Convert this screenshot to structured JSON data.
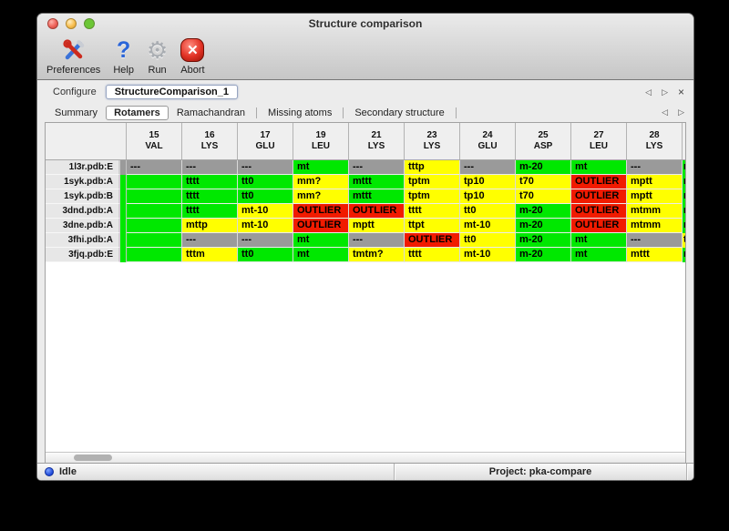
{
  "window": {
    "title": "Structure comparison"
  },
  "toolbar": {
    "items": [
      {
        "id": "preferences",
        "label": "Preferences"
      },
      {
        "id": "help",
        "label": "Help"
      },
      {
        "id": "run",
        "label": "Run"
      },
      {
        "id": "abort",
        "label": "Abort"
      }
    ]
  },
  "icons": {
    "prev": "◁",
    "next": "▷",
    "close": "×",
    "gear": "⚙",
    "help": "?",
    "abort_x": "✕"
  },
  "configure": {
    "label": "Configure",
    "value": "StructureComparison_1"
  },
  "tabs": {
    "items": [
      "Summary",
      "Rotamers",
      "Ramachandran",
      "Missing atoms",
      "Secondary structure"
    ],
    "active": "Rotamers"
  },
  "table": {
    "columns": [
      {
        "number": "15",
        "residue": "VAL"
      },
      {
        "number": "16",
        "residue": "LYS"
      },
      {
        "number": "17",
        "residue": "GLU"
      },
      {
        "number": "19",
        "residue": "LEU"
      },
      {
        "number": "21",
        "residue": "LYS"
      },
      {
        "number": "23",
        "residue": "LYS"
      },
      {
        "number": "24",
        "residue": "GLU"
      },
      {
        "number": "25",
        "residue": "ASP"
      },
      {
        "number": "27",
        "residue": "LEU"
      },
      {
        "number": "28",
        "residue": "LYS"
      }
    ],
    "rows": [
      {
        "label": "1l3r.pdb:E",
        "left_edge": {
          "color": "gray",
          "clip": "-"
        },
        "cells": [
          {
            "text": "---",
            "color": "gray"
          },
          {
            "text": "---",
            "color": "gray"
          },
          {
            "text": "---",
            "color": "gray"
          },
          {
            "text": "mt",
            "color": "green"
          },
          {
            "text": "---",
            "color": "gray"
          },
          {
            "text": "tttp",
            "color": "yellow"
          },
          {
            "text": "---",
            "color": "gray"
          },
          {
            "text": "m-20",
            "color": "green"
          },
          {
            "text": "mt",
            "color": "green"
          },
          {
            "text": "---",
            "color": "gray"
          }
        ],
        "right_edge": {
          "color": "green",
          "clip": "m"
        }
      },
      {
        "label": "1syk.pdb:A",
        "left_edge": {
          "color": "green",
          "clip": "t"
        },
        "cells": [
          {
            "text": "",
            "color": "green"
          },
          {
            "text": "tttt",
            "color": "green"
          },
          {
            "text": "tt0",
            "color": "green"
          },
          {
            "text": "mm?",
            "color": "yellow"
          },
          {
            "text": "mttt",
            "color": "green"
          },
          {
            "text": "tptm",
            "color": "yellow"
          },
          {
            "text": "tp10",
            "color": "yellow"
          },
          {
            "text": "t70",
            "color": "yellow"
          },
          {
            "text": "OUTLIER",
            "color": "red"
          },
          {
            "text": "mptt",
            "color": "yellow"
          }
        ],
        "right_edge": {
          "color": "green",
          "clip": "m"
        }
      },
      {
        "label": "1syk.pdb:B",
        "left_edge": {
          "color": "green",
          "clip": "t"
        },
        "cells": [
          {
            "text": "",
            "color": "green"
          },
          {
            "text": "tttt",
            "color": "green"
          },
          {
            "text": "tt0",
            "color": "green"
          },
          {
            "text": "mm?",
            "color": "yellow"
          },
          {
            "text": "mttt",
            "color": "green"
          },
          {
            "text": "tptm",
            "color": "yellow"
          },
          {
            "text": "tp10",
            "color": "yellow"
          },
          {
            "text": "t70",
            "color": "yellow"
          },
          {
            "text": "OUTLIER",
            "color": "red"
          },
          {
            "text": "mptt",
            "color": "yellow"
          }
        ],
        "right_edge": {
          "color": "green",
          "clip": "m"
        }
      },
      {
        "label": "3dnd.pdb:A",
        "left_edge": {
          "color": "green",
          "clip": "t"
        },
        "cells": [
          {
            "text": "",
            "color": "green"
          },
          {
            "text": "tttt",
            "color": "green"
          },
          {
            "text": "mt-10",
            "color": "yellow"
          },
          {
            "text": "OUTLIER",
            "color": "red"
          },
          {
            "text": "OUTLIER",
            "color": "red"
          },
          {
            "text": "tttt",
            "color": "yellow"
          },
          {
            "text": "tt0",
            "color": "yellow"
          },
          {
            "text": "m-20",
            "color": "green"
          },
          {
            "text": "OUTLIER",
            "color": "red"
          },
          {
            "text": "mtmm",
            "color": "yellow"
          }
        ],
        "right_edge": {
          "color": "green",
          "clip": "m"
        }
      },
      {
        "label": "3dne.pdb:A",
        "left_edge": {
          "color": "green",
          "clip": "t"
        },
        "cells": [
          {
            "text": "",
            "color": "green"
          },
          {
            "text": "mttp",
            "color": "yellow"
          },
          {
            "text": "mt-10",
            "color": "yellow"
          },
          {
            "text": "OUTLIER",
            "color": "red"
          },
          {
            "text": "mptt",
            "color": "yellow"
          },
          {
            "text": "ttpt",
            "color": "yellow"
          },
          {
            "text": "mt-10",
            "color": "yellow"
          },
          {
            "text": "m-20",
            "color": "green"
          },
          {
            "text": "OUTLIER",
            "color": "red"
          },
          {
            "text": "mtmm",
            "color": "yellow"
          }
        ],
        "right_edge": {
          "color": "green",
          "clip": "m"
        }
      },
      {
        "label": "3fhi.pdb:A",
        "left_edge": {
          "color": "green",
          "clip": "t"
        },
        "cells": [
          {
            "text": "",
            "color": "green"
          },
          {
            "text": "---",
            "color": "gray"
          },
          {
            "text": "---",
            "color": "gray"
          },
          {
            "text": "mt",
            "color": "green"
          },
          {
            "text": "---",
            "color": "gray"
          },
          {
            "text": "OUTLIER",
            "color": "red"
          },
          {
            "text": "tt0",
            "color": "yellow"
          },
          {
            "text": "m-20",
            "color": "green"
          },
          {
            "text": "mt",
            "color": "green"
          },
          {
            "text": "---",
            "color": "gray"
          }
        ],
        "right_edge": {
          "color": "yellow",
          "clip": "t"
        }
      },
      {
        "label": "3fjq.pdb:E",
        "left_edge": {
          "color": "green",
          "clip": "t"
        },
        "cells": [
          {
            "text": "",
            "color": "green"
          },
          {
            "text": "tttm",
            "color": "yellow"
          },
          {
            "text": "tt0",
            "color": "green"
          },
          {
            "text": "mt",
            "color": "green"
          },
          {
            "text": "tmtm?",
            "color": "yellow"
          },
          {
            "text": "tttt",
            "color": "yellow"
          },
          {
            "text": "mt-10",
            "color": "yellow"
          },
          {
            "text": "m-20",
            "color": "green"
          },
          {
            "text": "mt",
            "color": "green"
          },
          {
            "text": "mttt",
            "color": "yellow"
          }
        ],
        "right_edge": {
          "color": "green",
          "clip": "m"
        }
      }
    ]
  },
  "colors": {
    "ok_green": "#00e800",
    "warn_yellow": "#ffff00",
    "outlier_red": "#f11b00",
    "missing_gray": "#9a9a9a"
  },
  "status_bar": {
    "state": "Idle",
    "project": "Project: pka-compare"
  }
}
